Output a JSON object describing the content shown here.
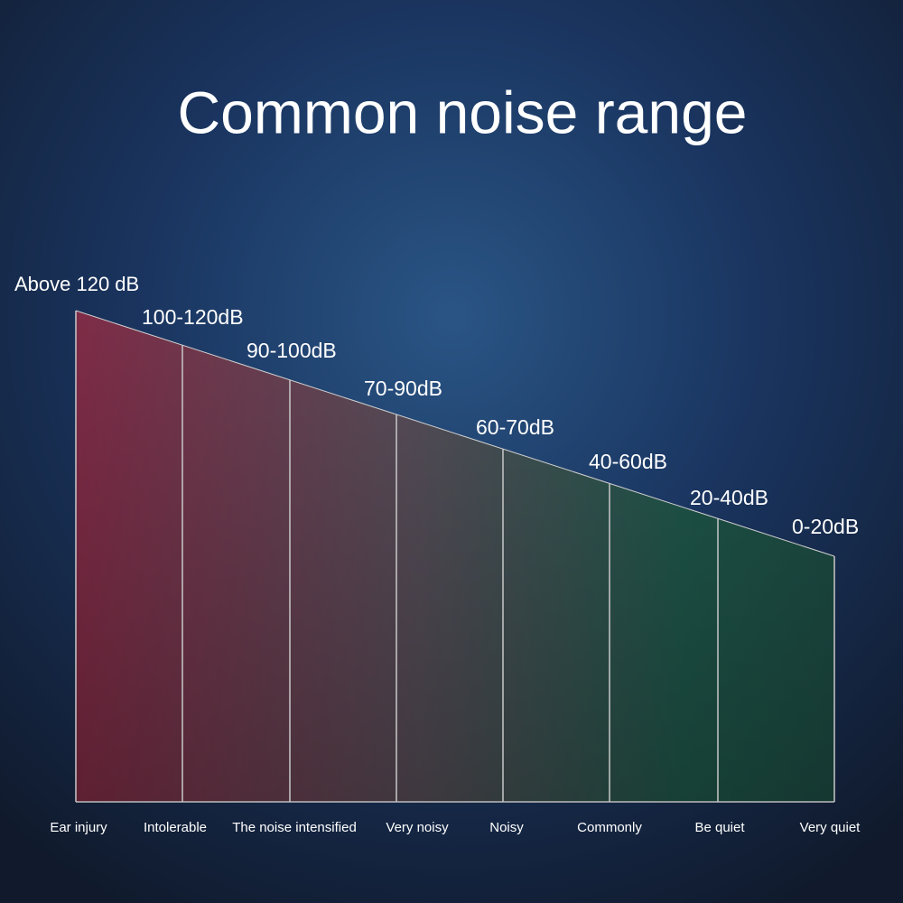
{
  "title": "Common noise range",
  "levels": [
    {
      "range": "Above 120 dB",
      "label": "Ear injury"
    },
    {
      "range": "100-120dB",
      "label": "Intolerable"
    },
    {
      "range": "90-100dB",
      "label": "The noise intensified"
    },
    {
      "range": "70-90dB",
      "label": "Very noisy"
    },
    {
      "range": "60-70dB",
      "label": "Noisy"
    },
    {
      "range": "40-60dB",
      "label": "Commonly"
    },
    {
      "range": "20-40dB",
      "label": "Be quiet"
    },
    {
      "range": "0-20dB",
      "label": "Very quiet"
    }
  ]
}
